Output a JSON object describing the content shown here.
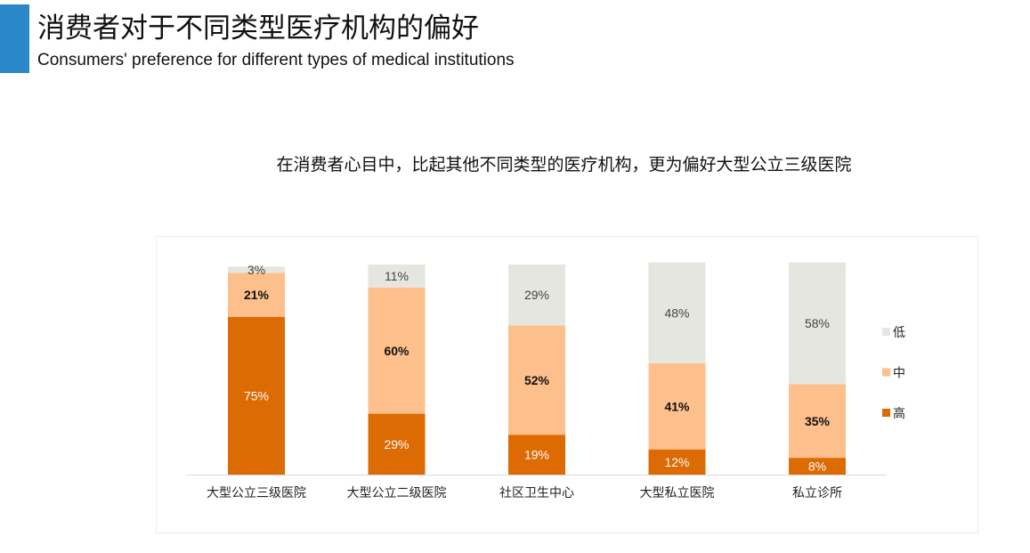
{
  "header": {
    "title_cn": "消费者对于不同类型医疗机构的偏好",
    "title_en": "Consumers' preference for different types of medical institutions",
    "accent_color": "#2b88c8"
  },
  "subtitle": "在消费者心目中，比起其他不同类型的医疗机构，更为偏好大型公立三级医院",
  "chart_data": {
    "type": "bar",
    "stacked": true,
    "categories": [
      "大型公立三级医院",
      "大型公立二级医院",
      "社区卫生中心",
      "大型私立医院",
      "私立诊所"
    ],
    "series": [
      {
        "name": "高",
        "values": [
          75,
          29,
          19,
          12,
          8
        ],
        "color": "#dd6b04",
        "label_color": "#ffffff"
      },
      {
        "name": "中",
        "values": [
          21,
          60,
          52,
          41,
          35
        ],
        "color": "#fdbf8c",
        "label_color": "#111111"
      },
      {
        "name": "低",
        "values": [
          3,
          11,
          29,
          48,
          58
        ],
        "color": "#e6e6e1",
        "label_color": "#444444"
      }
    ],
    "value_suffix": "%",
    "ylim": [
      0,
      100
    ],
    "grid": false,
    "legend_position": "right",
    "legend_order": [
      "低",
      "中",
      "高"
    ],
    "title": "",
    "xlabel": "",
    "ylabel": ""
  }
}
